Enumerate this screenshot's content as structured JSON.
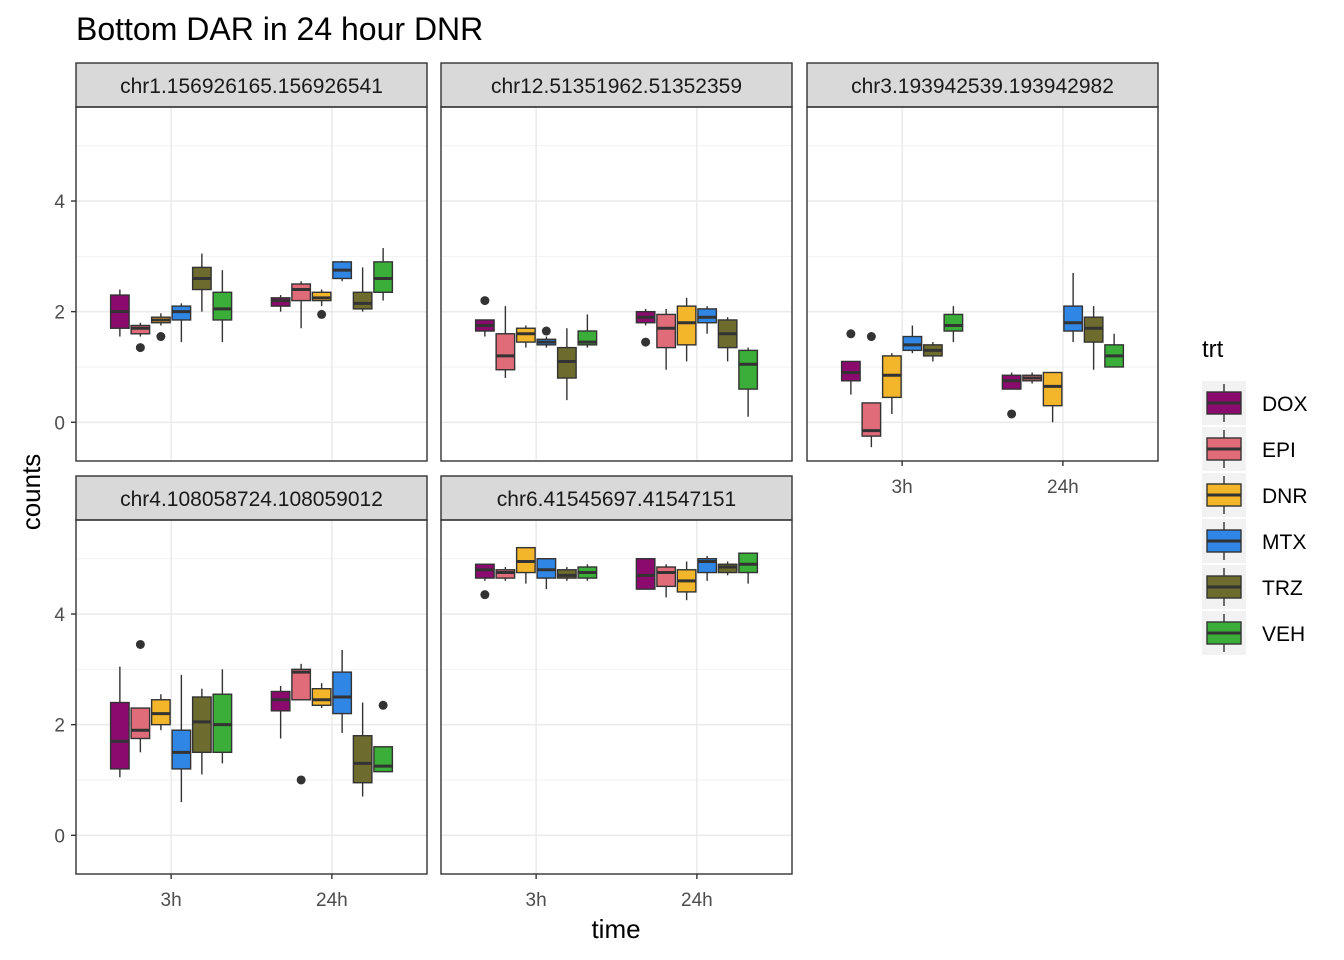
{
  "chart_data": {
    "type": "box",
    "title": "Bottom DAR in 24 hour DNR",
    "xlabel": "time",
    "ylabel": "counts",
    "ylim": [
      -0.7,
      5.7
    ],
    "yticks": [
      0,
      2,
      4
    ],
    "x_categories": [
      "3h",
      "24h"
    ],
    "legend": {
      "title": "trt",
      "position": "right",
      "entries": [
        {
          "name": "DOX",
          "color": "#8B0A6E"
        },
        {
          "name": "EPI",
          "color": "#E06C7A"
        },
        {
          "name": "DNR",
          "color": "#F3B62A"
        },
        {
          "name": "MTX",
          "color": "#2F86E4"
        },
        {
          "name": "TRZ",
          "color": "#6E6B2E"
        },
        {
          "name": "VEH",
          "color": "#3AAE38"
        }
      ]
    },
    "grid": true,
    "panels": [
      {
        "label": "chr1.156926165.156926541",
        "boxes": {
          "3h": [
            {
              "trt": "DOX",
              "q1": 1.7,
              "med": 2.0,
              "q3": 2.3,
              "lo": 1.55,
              "hi": 2.4,
              "out": []
            },
            {
              "trt": "EPI",
              "q1": 1.6,
              "med": 1.7,
              "q3": 1.75,
              "lo": 1.55,
              "hi": 1.8,
              "out": [
                1.35
              ]
            },
            {
              "trt": "DNR",
              "q1": 1.8,
              "med": 1.85,
              "q3": 1.9,
              "lo": 1.75,
              "hi": 1.97,
              "out": [
                1.55
              ]
            },
            {
              "trt": "MTX",
              "q1": 1.85,
              "med": 2.0,
              "q3": 2.1,
              "lo": 1.45,
              "hi": 2.15,
              "out": []
            },
            {
              "trt": "TRZ",
              "q1": 2.4,
              "med": 2.6,
              "q3": 2.8,
              "lo": 2.0,
              "hi": 3.05,
              "out": []
            },
            {
              "trt": "VEH",
              "q1": 1.85,
              "med": 2.05,
              "q3": 2.35,
              "lo": 1.45,
              "hi": 2.75,
              "out": []
            }
          ],
          "24h": [
            {
              "trt": "DOX",
              "q1": 2.1,
              "med": 2.2,
              "q3": 2.25,
              "lo": 2.0,
              "hi": 2.3,
              "out": []
            },
            {
              "trt": "EPI",
              "q1": 2.2,
              "med": 2.4,
              "q3": 2.5,
              "lo": 1.7,
              "hi": 2.55,
              "out": []
            },
            {
              "trt": "DNR",
              "q1": 2.2,
              "med": 2.25,
              "q3": 2.35,
              "lo": 2.1,
              "hi": 2.4,
              "out": [
                1.95
              ]
            },
            {
              "trt": "MTX",
              "q1": 2.6,
              "med": 2.75,
              "q3": 2.9,
              "lo": 2.55,
              "hi": 2.92,
              "out": []
            },
            {
              "trt": "TRZ",
              "q1": 2.05,
              "med": 2.15,
              "q3": 2.35,
              "lo": 2.0,
              "hi": 2.8,
              "out": []
            },
            {
              "trt": "VEH",
              "q1": 2.35,
              "med": 2.6,
              "q3": 2.9,
              "lo": 2.2,
              "hi": 3.15,
              "out": []
            }
          ]
        }
      },
      {
        "label": "chr12.51351962.51352359",
        "boxes": {
          "3h": [
            {
              "trt": "DOX",
              "q1": 1.65,
              "med": 1.75,
              "q3": 1.85,
              "lo": 1.55,
              "hi": 1.85,
              "out": [
                2.2
              ]
            },
            {
              "trt": "EPI",
              "q1": 0.95,
              "med": 1.2,
              "q3": 1.6,
              "lo": 0.8,
              "hi": 2.1,
              "out": []
            },
            {
              "trt": "DNR",
              "q1": 1.45,
              "med": 1.6,
              "q3": 1.7,
              "lo": 1.35,
              "hi": 1.75,
              "out": []
            },
            {
              "trt": "MTX",
              "q1": 1.4,
              "med": 1.45,
              "q3": 1.5,
              "lo": 1.35,
              "hi": 1.55,
              "out": [
                1.65
              ]
            },
            {
              "trt": "TRZ",
              "q1": 0.8,
              "med": 1.1,
              "q3": 1.35,
              "lo": 0.4,
              "hi": 1.7,
              "out": []
            },
            {
              "trt": "VEH",
              "q1": 1.4,
              "med": 1.45,
              "q3": 1.65,
              "lo": 1.35,
              "hi": 1.95,
              "out": []
            }
          ],
          "24h": [
            {
              "trt": "DOX",
              "q1": 1.8,
              "med": 1.9,
              "q3": 2.0,
              "lo": 1.75,
              "hi": 2.05,
              "out": [
                1.45
              ]
            },
            {
              "trt": "EPI",
              "q1": 1.35,
              "med": 1.7,
              "q3": 1.95,
              "lo": 0.95,
              "hi": 2.05,
              "out": []
            },
            {
              "trt": "DNR",
              "q1": 1.4,
              "med": 1.8,
              "q3": 2.1,
              "lo": 1.1,
              "hi": 2.25,
              "out": []
            },
            {
              "trt": "MTX",
              "q1": 1.8,
              "med": 1.9,
              "q3": 2.05,
              "lo": 1.6,
              "hi": 2.1,
              "out": []
            },
            {
              "trt": "TRZ",
              "q1": 1.35,
              "med": 1.6,
              "q3": 1.85,
              "lo": 1.1,
              "hi": 1.9,
              "out": []
            },
            {
              "trt": "VEH",
              "q1": 0.6,
              "med": 1.05,
              "q3": 1.3,
              "lo": 0.1,
              "hi": 1.35,
              "out": []
            }
          ]
        }
      },
      {
        "label": "chr3.193942539.193942982",
        "boxes": {
          "3h": [
            {
              "trt": "DOX",
              "q1": 0.75,
              "med": 0.9,
              "q3": 1.1,
              "lo": 0.5,
              "hi": 1.1,
              "out": [
                1.6
              ]
            },
            {
              "trt": "EPI",
              "q1": -0.25,
              "med": -0.15,
              "q3": 0.35,
              "lo": -0.45,
              "hi": 0.35,
              "out": [
                1.55
              ]
            },
            {
              "trt": "DNR",
              "q1": 0.45,
              "med": 0.85,
              "q3": 1.2,
              "lo": 0.15,
              "hi": 1.25,
              "out": []
            },
            {
              "trt": "MTX",
              "q1": 1.3,
              "med": 1.4,
              "q3": 1.55,
              "lo": 1.25,
              "hi": 1.75,
              "out": []
            },
            {
              "trt": "TRZ",
              "q1": 1.2,
              "med": 1.3,
              "q3": 1.4,
              "lo": 1.1,
              "hi": 1.45,
              "out": []
            },
            {
              "trt": "VEH",
              "q1": 1.65,
              "med": 1.75,
              "q3": 1.95,
              "lo": 1.45,
              "hi": 2.1,
              "out": []
            }
          ],
          "24h": [
            {
              "trt": "DOX",
              "q1": 0.6,
              "med": 0.75,
              "q3": 0.85,
              "lo": 0.6,
              "hi": 0.9,
              "out": [
                0.15
              ]
            },
            {
              "trt": "EPI",
              "q1": 0.75,
              "med": 0.8,
              "q3": 0.85,
              "lo": 0.7,
              "hi": 0.9,
              "out": []
            },
            {
              "trt": "DNR",
              "q1": 0.3,
              "med": 0.65,
              "q3": 0.9,
              "lo": 0.0,
              "hi": 0.9,
              "out": []
            },
            {
              "trt": "MTX",
              "q1": 1.65,
              "med": 1.8,
              "q3": 2.1,
              "lo": 1.45,
              "hi": 2.7,
              "out": []
            },
            {
              "trt": "TRZ",
              "q1": 1.45,
              "med": 1.7,
              "q3": 1.9,
              "lo": 0.95,
              "hi": 2.1,
              "out": []
            },
            {
              "trt": "VEH",
              "q1": 1.0,
              "med": 1.2,
              "q3": 1.4,
              "lo": 1.0,
              "hi": 1.6,
              "out": []
            }
          ]
        }
      },
      {
        "label": "chr4.108058724.108059012",
        "boxes": {
          "3h": [
            {
              "trt": "DOX",
              "q1": 1.2,
              "med": 1.7,
              "q3": 2.4,
              "lo": 1.05,
              "hi": 3.05,
              "out": []
            },
            {
              "trt": "EPI",
              "q1": 1.75,
              "med": 1.9,
              "q3": 2.3,
              "lo": 1.5,
              "hi": 2.3,
              "out": [
                3.45
              ]
            },
            {
              "trt": "DNR",
              "q1": 2.0,
              "med": 2.2,
              "q3": 2.45,
              "lo": 1.9,
              "hi": 2.55,
              "out": []
            },
            {
              "trt": "MTX",
              "q1": 1.2,
              "med": 1.5,
              "q3": 1.9,
              "lo": 0.6,
              "hi": 2.9,
              "out": []
            },
            {
              "trt": "TRZ",
              "q1": 1.5,
              "med": 2.05,
              "q3": 2.5,
              "lo": 1.1,
              "hi": 2.65,
              "out": []
            },
            {
              "trt": "VEH",
              "q1": 1.5,
              "med": 2.0,
              "q3": 2.55,
              "lo": 1.3,
              "hi": 3.0,
              "out": []
            }
          ],
          "24h": [
            {
              "trt": "DOX",
              "q1": 2.25,
              "med": 2.45,
              "q3": 2.6,
              "lo": 1.75,
              "hi": 2.7,
              "out": []
            },
            {
              "trt": "EPI",
              "q1": 2.45,
              "med": 2.95,
              "q3": 3.0,
              "lo": 2.45,
              "hi": 3.1,
              "out": [
                1.0
              ]
            },
            {
              "trt": "DNR",
              "q1": 2.35,
              "med": 2.45,
              "q3": 2.65,
              "lo": 2.3,
              "hi": 2.75,
              "out": []
            },
            {
              "trt": "MTX",
              "q1": 2.2,
              "med": 2.5,
              "q3": 2.95,
              "lo": 1.85,
              "hi": 3.35,
              "out": []
            },
            {
              "trt": "TRZ",
              "q1": 0.95,
              "med": 1.3,
              "q3": 1.8,
              "lo": 0.7,
              "hi": 2.4,
              "out": []
            },
            {
              "trt": "VEH",
              "q1": 1.15,
              "med": 1.25,
              "q3": 1.6,
              "lo": 1.15,
              "hi": 1.6,
              "out": [
                2.35
              ]
            }
          ]
        }
      },
      {
        "label": "chr6.41545697.41547151",
        "boxes": {
          "3h": [
            {
              "trt": "DOX",
              "q1": 4.65,
              "med": 4.8,
              "q3": 4.9,
              "lo": 4.6,
              "hi": 4.9,
              "out": [
                4.35
              ]
            },
            {
              "trt": "EPI",
              "q1": 4.65,
              "med": 4.75,
              "q3": 4.8,
              "lo": 4.6,
              "hi": 4.85,
              "out": []
            },
            {
              "trt": "DNR",
              "q1": 4.75,
              "med": 4.95,
              "q3": 5.2,
              "lo": 4.55,
              "hi": 5.2,
              "out": []
            },
            {
              "trt": "MTX",
              "q1": 4.65,
              "med": 4.8,
              "q3": 5.0,
              "lo": 4.45,
              "hi": 5.0,
              "out": []
            },
            {
              "trt": "TRZ",
              "q1": 4.65,
              "med": 4.7,
              "q3": 4.8,
              "lo": 4.6,
              "hi": 4.85,
              "out": []
            },
            {
              "trt": "VEH",
              "q1": 4.65,
              "med": 4.75,
              "q3": 4.85,
              "lo": 4.6,
              "hi": 4.9,
              "out": []
            }
          ],
          "24h": [
            {
              "trt": "DOX",
              "q1": 4.45,
              "med": 4.7,
              "q3": 5.0,
              "lo": 4.45,
              "hi": 5.0,
              "out": []
            },
            {
              "trt": "EPI",
              "q1": 4.5,
              "med": 4.75,
              "q3": 4.85,
              "lo": 4.3,
              "hi": 4.9,
              "out": []
            },
            {
              "trt": "DNR",
              "q1": 4.4,
              "med": 4.6,
              "q3": 4.8,
              "lo": 4.25,
              "hi": 4.95,
              "out": []
            },
            {
              "trt": "MTX",
              "q1": 4.75,
              "med": 4.95,
              "q3": 5.0,
              "lo": 4.6,
              "hi": 5.05,
              "out": []
            },
            {
              "trt": "TRZ",
              "q1": 4.75,
              "med": 4.85,
              "q3": 4.9,
              "lo": 4.7,
              "hi": 4.95,
              "out": []
            },
            {
              "trt": "VEH",
              "q1": 4.75,
              "med": 4.9,
              "q3": 5.1,
              "lo": 4.55,
              "hi": 5.1,
              "out": []
            }
          ]
        }
      }
    ]
  }
}
